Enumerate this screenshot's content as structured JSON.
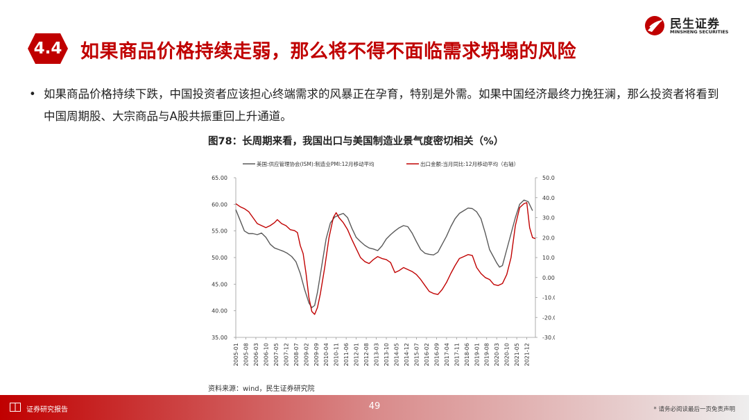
{
  "brand": {
    "name_cn": "民生证券",
    "name_en": "MINSHENG SECURITIES"
  },
  "section": {
    "number": "4.4",
    "title": "如果商品价格持续走弱，那么将不得不面临需求坍塌的风险"
  },
  "bullet": {
    "text": "如果商品价格持续下跌，中国投资者应该担心终端需求的风暴正在孕育，特别是外需。如果中国经济最终力挽狂澜，那么投资者将看到中国周期股、大宗商品与A股共振重回上升通道。"
  },
  "figure": {
    "title": "图78：长周期来看，我国出口与美国制造业景气度密切相关（%）",
    "source": "资料来源：wind，民生证券研究院"
  },
  "footer": {
    "left": "证券研究报告",
    "page": "49",
    "right": "* 请务必阅读最后一页免责声明"
  },
  "chart_data": {
    "type": "line",
    "title": "",
    "left_axis": {
      "min": 35,
      "max": 65,
      "ticks": [
        "35.00",
        "40.00",
        "45.00",
        "50.00",
        "55.00",
        "60.00",
        "65.00"
      ]
    },
    "right_axis": {
      "min": -30,
      "max": 50,
      "ticks": [
        "-30.00",
        "-20.00",
        "-10.00",
        "0.00",
        "10.00",
        "20.00",
        "30.00",
        "40.00",
        "50.00"
      ]
    },
    "x_start": "2005-01",
    "x_end": "2022-06",
    "x_ticks": [
      "2005-01",
      "2005-08",
      "2006-03",
      "2006-10",
      "2007-05",
      "2007-12",
      "2008-07",
      "2009-02",
      "2009-09",
      "2010-04",
      "2010-11",
      "2011-06",
      "2012-01",
      "2012-08",
      "2013-03",
      "2013-10",
      "2014-05",
      "2014-12",
      "2015-07",
      "2016-02",
      "2016-09",
      "2017-04",
      "2017-11",
      "2018-06",
      "2019-01",
      "2019-08",
      "2020-03",
      "2020-10",
      "2021-05",
      "2021-12"
    ],
    "grid": false,
    "legend_position": "top",
    "series": [
      {
        "name": "美国:供应管理协会(ISM):制造业PMI:12月移动平均",
        "axis": "left",
        "color": "#595959",
        "points": [
          [
            "2005-01",
            59.0
          ],
          [
            "2005-04",
            57.0
          ],
          [
            "2005-07",
            55.0
          ],
          [
            "2005-10",
            54.5
          ],
          [
            "2006-01",
            54.5
          ],
          [
            "2006-04",
            54.3
          ],
          [
            "2006-07",
            54.6
          ],
          [
            "2006-10",
            53.8
          ],
          [
            "2007-01",
            52.5
          ],
          [
            "2007-04",
            51.8
          ],
          [
            "2007-07",
            51.5
          ],
          [
            "2007-10",
            51.2
          ],
          [
            "2008-01",
            50.8
          ],
          [
            "2008-04",
            50.2
          ],
          [
            "2008-07",
            49.2
          ],
          [
            "2008-10",
            47.0
          ],
          [
            "2009-01",
            44.0
          ],
          [
            "2009-04",
            41.5
          ],
          [
            "2009-06",
            40.6
          ],
          [
            "2009-08",
            41.0
          ],
          [
            "2009-10",
            43.5
          ],
          [
            "2010-01",
            48.5
          ],
          [
            "2010-04",
            53.5
          ],
          [
            "2010-07",
            56.5
          ],
          [
            "2010-10",
            57.6
          ],
          [
            "2011-01",
            58.0
          ],
          [
            "2011-04",
            58.3
          ],
          [
            "2011-07",
            57.5
          ],
          [
            "2011-10",
            55.5
          ],
          [
            "2012-01",
            53.8
          ],
          [
            "2012-04",
            53.0
          ],
          [
            "2012-07",
            52.3
          ],
          [
            "2012-10",
            51.8
          ],
          [
            "2013-01",
            51.6
          ],
          [
            "2013-04",
            51.3
          ],
          [
            "2013-07",
            52.2
          ],
          [
            "2013-10",
            53.5
          ],
          [
            "2014-01",
            54.3
          ],
          [
            "2014-04",
            55.0
          ],
          [
            "2014-07",
            55.6
          ],
          [
            "2014-10",
            56.0
          ],
          [
            "2015-01",
            55.8
          ],
          [
            "2015-04",
            54.6
          ],
          [
            "2015-07",
            53.0
          ],
          [
            "2015-10",
            51.5
          ],
          [
            "2016-01",
            50.8
          ],
          [
            "2016-04",
            50.6
          ],
          [
            "2016-07",
            50.5
          ],
          [
            "2016-10",
            51.0
          ],
          [
            "2017-01",
            52.5
          ],
          [
            "2017-04",
            54.0
          ],
          [
            "2017-07",
            55.8
          ],
          [
            "2017-10",
            57.3
          ],
          [
            "2018-01",
            58.3
          ],
          [
            "2018-04",
            58.8
          ],
          [
            "2018-07",
            59.3
          ],
          [
            "2018-10",
            59.2
          ],
          [
            "2019-01",
            58.6
          ],
          [
            "2019-04",
            57.3
          ],
          [
            "2019-07",
            54.6
          ],
          [
            "2019-10",
            51.5
          ],
          [
            "2020-01",
            50.0
          ],
          [
            "2020-03",
            49.0
          ],
          [
            "2020-05",
            48.2
          ],
          [
            "2020-07",
            48.5
          ],
          [
            "2020-10",
            51.5
          ],
          [
            "2021-01",
            54.5
          ],
          [
            "2021-04",
            57.5
          ],
          [
            "2021-07",
            60.0
          ],
          [
            "2021-10",
            60.8
          ],
          [
            "2022-01",
            60.5
          ],
          [
            "2022-04",
            58.8
          ]
        ]
      },
      {
        "name": "出口金额:当月同比:12月移动平均（右轴）",
        "axis": "right",
        "color": "#c00000",
        "points": [
          [
            "2005-01",
            37.0
          ],
          [
            "2005-04",
            35.5
          ],
          [
            "2005-07",
            34.5
          ],
          [
            "2005-10",
            33.0
          ],
          [
            "2006-01",
            30.0
          ],
          [
            "2006-04",
            27.0
          ],
          [
            "2006-07",
            26.0
          ],
          [
            "2006-10",
            25.0
          ],
          [
            "2007-01",
            26.0
          ],
          [
            "2007-04",
            27.5
          ],
          [
            "2007-06",
            29.0
          ],
          [
            "2007-09",
            27.0
          ],
          [
            "2007-12",
            26.0
          ],
          [
            "2008-03",
            24.0
          ],
          [
            "2008-06",
            23.5
          ],
          [
            "2008-08",
            22.5
          ],
          [
            "2008-10",
            16.0
          ],
          [
            "2008-12",
            12.0
          ],
          [
            "2009-02",
            2.0
          ],
          [
            "2009-04",
            -10.0
          ],
          [
            "2009-06",
            -17.0
          ],
          [
            "2009-08",
            -18.5
          ],
          [
            "2009-10",
            -15.0
          ],
          [
            "2009-12",
            -8.0
          ],
          [
            "2010-03",
            5.0
          ],
          [
            "2010-06",
            20.0
          ],
          [
            "2010-09",
            30.0
          ],
          [
            "2010-11",
            32.5
          ],
          [
            "2011-01",
            30.0
          ],
          [
            "2011-04",
            27.5
          ],
          [
            "2011-07",
            24.0
          ],
          [
            "2011-10",
            19.0
          ],
          [
            "2012-01",
            14.5
          ],
          [
            "2012-04",
            10.0
          ],
          [
            "2012-07",
            8.0
          ],
          [
            "2012-10",
            7.0
          ],
          [
            "2013-01",
            9.0
          ],
          [
            "2013-04",
            10.5
          ],
          [
            "2013-07",
            9.5
          ],
          [
            "2013-10",
            9.0
          ],
          [
            "2014-01",
            7.5
          ],
          [
            "2014-04",
            2.5
          ],
          [
            "2014-07",
            3.5
          ],
          [
            "2014-10",
            5.0
          ],
          [
            "2015-01",
            4.0
          ],
          [
            "2015-04",
            3.0
          ],
          [
            "2015-07",
            1.5
          ],
          [
            "2015-10",
            -1.0
          ],
          [
            "2016-01",
            -4.0
          ],
          [
            "2016-04",
            -7.0
          ],
          [
            "2016-07",
            -8.0
          ],
          [
            "2016-10",
            -8.5
          ],
          [
            "2017-01",
            -6.0
          ],
          [
            "2017-04",
            -2.5
          ],
          [
            "2017-07",
            2.0
          ],
          [
            "2017-10",
            6.0
          ],
          [
            "2018-01",
            9.5
          ],
          [
            "2018-04",
            10.5
          ],
          [
            "2018-07",
            11.5
          ],
          [
            "2018-10",
            11.0
          ],
          [
            "2019-01",
            5.0
          ],
          [
            "2019-04",
            2.0
          ],
          [
            "2019-07",
            0.0
          ],
          [
            "2019-10",
            -1.0
          ],
          [
            "2020-01",
            -3.5
          ],
          [
            "2020-04",
            -4.0
          ],
          [
            "2020-07",
            -3.0
          ],
          [
            "2020-10",
            1.5
          ],
          [
            "2021-01",
            10.0
          ],
          [
            "2021-04",
            26.0
          ],
          [
            "2021-07",
            35.0
          ],
          [
            "2021-10",
            37.0
          ],
          [
            "2021-12",
            37.5
          ],
          [
            "2022-02",
            25.0
          ],
          [
            "2022-04",
            20.0
          ],
          [
            "2022-06",
            19.5
          ]
        ]
      }
    ]
  }
}
